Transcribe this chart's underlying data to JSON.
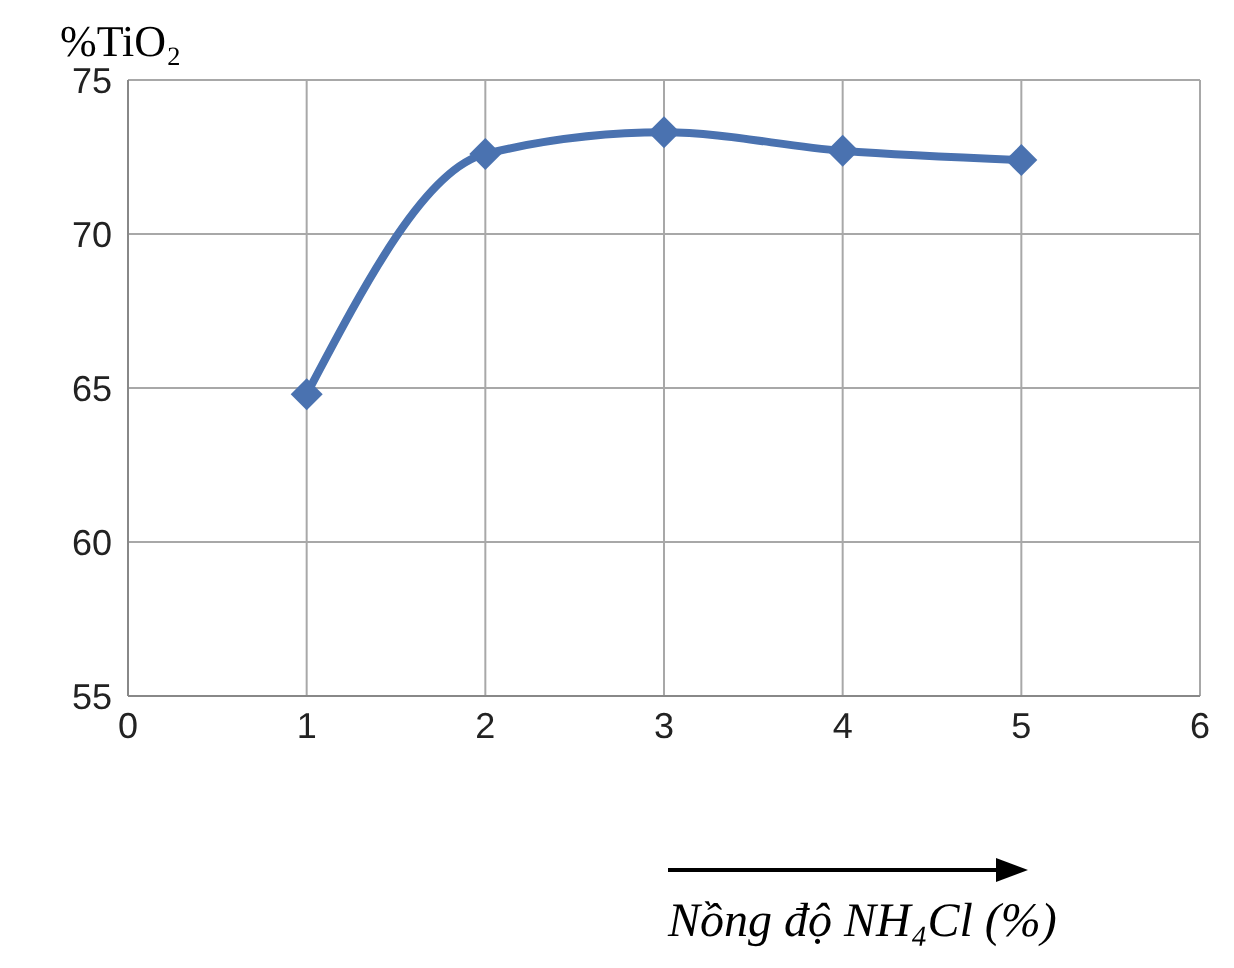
{
  "chart_data": {
    "type": "line",
    "ylabel": "%TiO₂",
    "xlabel": "Nồng độ NH₄Cl (%)",
    "x": [
      1,
      2,
      3,
      4,
      5
    ],
    "series": [
      {
        "color": "#4a72b0",
        "values": [
          64.8,
          72.6,
          73.3,
          72.7,
          72.4
        ]
      }
    ],
    "xlim": [
      0,
      6
    ],
    "xticks": [
      0,
      1,
      2,
      3,
      4,
      5,
      6
    ],
    "ylim": [
      55,
      75
    ],
    "yticks": [
      55,
      60,
      65,
      70,
      75
    ],
    "grid": true,
    "marker": "diamond",
    "line_style": "solid"
  }
}
